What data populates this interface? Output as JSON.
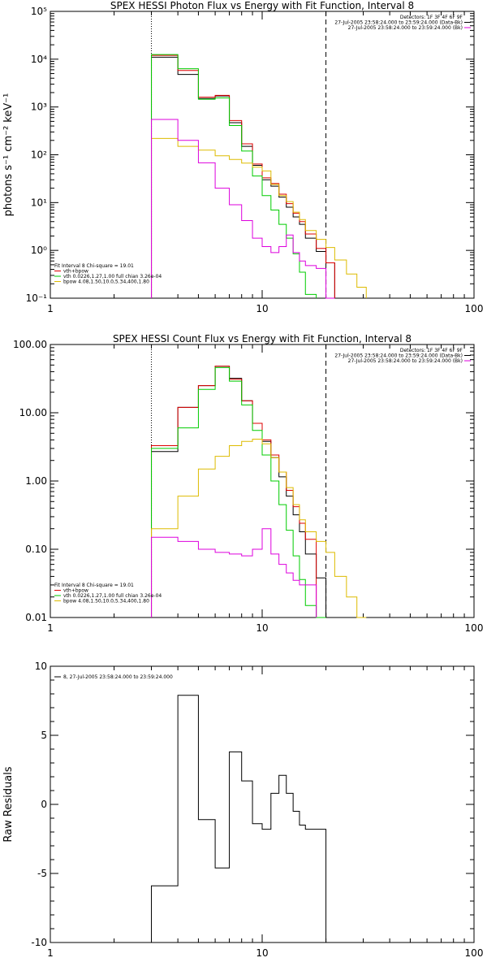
{
  "chart_data": [
    {
      "type": "line",
      "title": "SPEX HESSI Photon Flux vs Energy with Fit Function, Interval 8",
      "xlabel": "",
      "ylabel": "photons s⁻¹ cm⁻² keV⁻¹",
      "xscale": "log",
      "yscale": "log",
      "xlim": [
        1,
        100
      ],
      "ylim": [
        0.1,
        100000
      ],
      "xticks": [
        "1",
        "10",
        "100"
      ],
      "yticks": [
        "10⁻¹",
        "10⁰",
        "10¹",
        "10²",
        "10³",
        "10⁴",
        "10⁵"
      ],
      "vlines": [
        {
          "x": 3.0,
          "style": "dotted"
        },
        {
          "x": 20.0,
          "style": "dashed"
        }
      ],
      "legend_left": [
        "Fit Interval 8   Chi-square = 19.01",
        "vth+bpow",
        "vth 0.0226,1.27,1.00  full chian 3.26e-04",
        "bpow 4.08,1.50,10.0,5.34,400,1.80"
      ],
      "legend_left_colors": [
        "#000000",
        "#dd0000",
        "#00cc00",
        "#ddbb00"
      ],
      "legend_right": [
        "Detectors: 1F 3F 4F 6F 9F",
        "27-Jul-2005 23:58:24.000 to 23:59:24.000 (Data-Bk)",
        "27-Jul-2005 23:58:24.000 to 23:59:24.000 (Bk)"
      ],
      "legend_right_colors": [
        "#000000",
        "#000000",
        "#dd00dd"
      ],
      "bin_edges": [
        3,
        4,
        5,
        6,
        7,
        8,
        9,
        10,
        11,
        12,
        13,
        14,
        15,
        16,
        18,
        20,
        22,
        25,
        28,
        31
      ],
      "series": [
        {
          "name": "Data-Bk",
          "color": "#000000",
          "values": [
            11000,
            4800,
            1500,
            1700,
            470,
            150,
            60,
            30,
            22,
            13,
            8,
            5,
            3.5,
            1.8,
            0.95,
            0.55,
            null,
            null,
            null
          ]
        },
        {
          "name": "vth+bpow",
          "color": "#dd0000",
          "values": [
            12000,
            5800,
            1600,
            1750,
            520,
            170,
            64,
            33,
            25,
            15,
            9.5,
            6,
            4,
            2.2,
            1.1,
            0.55,
            null,
            null,
            null
          ]
        },
        {
          "name": "vth",
          "color": "#00cc00",
          "values": [
            12500,
            6300,
            1450,
            1550,
            410,
            120,
            36,
            14,
            7,
            3.5,
            1.8,
            0.85,
            0.35,
            0.12,
            null,
            null,
            null,
            null,
            null
          ]
        },
        {
          "name": "bpow",
          "color": "#ddbb00",
          "values": [
            220,
            150,
            125,
            95,
            80,
            67,
            55,
            46,
            24,
            14,
            10.5,
            6.3,
            4.4,
            2.6,
            1.7,
            1.15,
            0.63,
            0.32,
            0.17
          ]
        },
        {
          "name": "Bk",
          "color": "#dd00dd",
          "values": [
            550,
            200,
            68,
            20,
            9,
            4.2,
            1.8,
            1.2,
            0.9,
            1.2,
            2.1,
            0.9,
            0.6,
            0.48,
            0.42,
            0.08,
            null,
            null,
            null
          ]
        }
      ]
    },
    {
      "type": "line",
      "title": "SPEX HESSI Count Flux vs Energy with Fit Function, Interval 8",
      "xlabel": "",
      "ylabel": "",
      "xscale": "log",
      "yscale": "log",
      "xlim": [
        1,
        100
      ],
      "ylim": [
        0.01,
        100
      ],
      "xticks": [
        "1",
        "10",
        "100"
      ],
      "yticks": [
        "0.01",
        "0.10",
        "1.00",
        "10.00",
        "100.00"
      ],
      "vlines": [
        {
          "x": 3.0,
          "style": "dotted"
        },
        {
          "x": 20.0,
          "style": "dashed"
        }
      ],
      "legend_left": [
        "Fit Interval 8   Chi-square = 19.01",
        "vth+bpow",
        "vth 0.0226,1.27,1.00  full chian 3.26e-04",
        "bpow 4.08,1.50,10.0,5.34,400,1.80"
      ],
      "legend_left_colors": [
        "#000000",
        "#dd0000",
        "#00cc00",
        "#ddbb00"
      ],
      "legend_right": [
        "Detectors: 1F 3F 4F 6F 9F",
        "27-Jul-2005 23:58:24.000 to 23:59:24.000 (Data-Bk)",
        "27-Jul-2005 23:58:24.000 to 23:59:24.000 (Bk)"
      ],
      "legend_right_colors": [
        "#000000",
        "#000000",
        "#dd00dd"
      ],
      "bin_edges": [
        3,
        4,
        5,
        6,
        7,
        8,
        9,
        10,
        11,
        12,
        13,
        14,
        15,
        16,
        18,
        20,
        22,
        25,
        28,
        31
      ],
      "series": [
        {
          "name": "Data-Bk",
          "color": "#000000",
          "values": [
            2.7,
            12,
            25,
            48,
            32,
            15,
            7,
            3.8,
            2.2,
            1.15,
            0.6,
            0.32,
            0.18,
            0.085,
            0.038,
            null,
            null,
            null,
            null
          ]
        },
        {
          "name": "vth+bpow",
          "color": "#dd0000",
          "values": [
            3.3,
            12,
            25,
            48,
            31,
            15,
            7,
            4,
            2.4,
            1.35,
            0.73,
            0.42,
            0.24,
            0.14,
            null,
            null,
            null,
            null,
            null
          ]
        },
        {
          "name": "vth",
          "color": "#00cc00",
          "values": [
            3.0,
            6.0,
            22,
            46,
            29,
            13,
            5.5,
            2.4,
            1.0,
            0.45,
            0.19,
            0.08,
            0.036,
            0.015,
            0.01,
            null,
            null,
            null,
            null
          ]
        },
        {
          "name": "bpow",
          "color": "#ddbb00",
          "values": [
            0.2,
            0.6,
            1.5,
            2.3,
            3.3,
            3.8,
            4.1,
            3.5,
            2.2,
            1.35,
            0.8,
            0.45,
            0.27,
            0.18,
            0.13,
            0.09,
            0.04,
            0.02,
            0.01
          ]
        },
        {
          "name": "Bk",
          "color": "#dd00dd",
          "values": [
            0.15,
            0.13,
            0.1,
            0.09,
            0.085,
            0.08,
            0.1,
            0.2,
            0.085,
            0.06,
            0.045,
            0.035,
            0.03,
            0.03,
            null,
            null,
            null,
            null,
            null
          ]
        }
      ]
    },
    {
      "type": "line",
      "title": "",
      "xlabel": "",
      "ylabel": "Raw Residuals",
      "xscale": "log",
      "yscale": "linear",
      "xlim": [
        1,
        100
      ],
      "ylim": [
        -10,
        10
      ],
      "xticks": [
        "1",
        "10",
        "100"
      ],
      "yticks": [
        "-10",
        "-5",
        "0",
        "5",
        "10"
      ],
      "legend_left": [
        "8, 27-Jul-2005 23:58:24.000 to 23:59:24.000"
      ],
      "legend_left_colors": [
        "#000000"
      ],
      "bin_edges": [
        3,
        4,
        5,
        6,
        7,
        8,
        9,
        10,
        11,
        12,
        13,
        14,
        15,
        16,
        18,
        20
      ],
      "series": [
        {
          "name": "8, 27-Jul-2005 23:58:24.000 to 23:59:24.000",
          "color": "#000000",
          "values": [
            -5.9,
            7.9,
            -1.1,
            -4.6,
            3.8,
            1.7,
            -1.4,
            -1.8,
            0.8,
            2.1,
            0.8,
            -0.5,
            -1.5,
            -1.8,
            -1.8
          ]
        }
      ]
    }
  ]
}
